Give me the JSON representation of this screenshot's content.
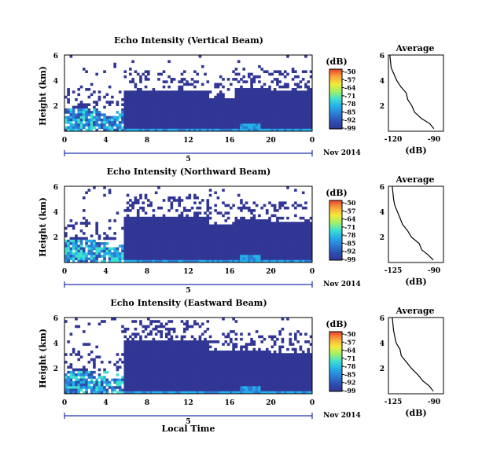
{
  "figure": {
    "x_axis_label": "Local Time",
    "date_label": "Nov 2014",
    "colorbar_unit": "(dB)",
    "colorbar_ticks": [
      "-50",
      "-57",
      "-64",
      "-71",
      "-78",
      "-85",
      "-92",
      "-99"
    ],
    "colormap": [
      "#313695",
      "#2b4fb0",
      "#2c7bd6",
      "#22b0e8",
      "#3fe0d0",
      "#9df06a",
      "#f5e93a",
      "#f9a33a",
      "#e8412b"
    ],
    "panel_border_color": "#000000",
    "day_bar_color": "#2233aa"
  },
  "chart_data": [
    {
      "type": "heatmap",
      "title": "Echo Intensity (Vertical Beam)",
      "xlabel": "",
      "ylabel": "Height (km)",
      "x_tick_labels": [
        "0",
        "4",
        "8",
        "12",
        "16",
        "20",
        "0"
      ],
      "x_range_hours": [
        0,
        24
      ],
      "y_tick_labels": [
        "6",
        "4",
        "2"
      ],
      "y_range_km": [
        0,
        6
      ],
      "day_label": "5",
      "colorbar_range_db": [
        -99,
        -50
      ],
      "profile": {
        "title": "Average",
        "xlabel": "(dB)",
        "x_tick_labels": [
          "-120",
          "-90"
        ],
        "x_range_db": [
          -125,
          -85
        ],
        "y_tick_labels": [
          "6",
          "4",
          "2"
        ],
        "y_km": [
          0.2,
          0.6,
          1.0,
          1.5,
          2.0,
          2.5,
          3.0,
          3.5,
          4.0,
          4.5,
          5.0,
          6.0
        ],
        "db": [
          -92,
          -95,
          -101,
          -106,
          -108,
          -111,
          -112,
          -116,
          -119,
          -121,
          -123,
          -124
        ]
      }
    },
    {
      "type": "heatmap",
      "title": "Echo Intensity (Northward Beam)",
      "xlabel": "",
      "ylabel": "Height (km)",
      "x_tick_labels": [
        "0",
        "4",
        "8",
        "12",
        "16",
        "20",
        "0"
      ],
      "x_range_hours": [
        0,
        24
      ],
      "y_tick_labels": [
        "6",
        "4",
        "2"
      ],
      "y_range_km": [
        0,
        6
      ],
      "day_label": "5",
      "colorbar_range_db": [
        -99,
        -50
      ],
      "profile": {
        "title": "Average",
        "xlabel": "(dB)",
        "x_tick_labels": [
          "-125",
          "-90"
        ],
        "x_range_db": [
          -128,
          -85
        ],
        "y_tick_labels": [
          "6",
          "4",
          "2"
        ],
        "y_km": [
          0.2,
          0.6,
          1.0,
          1.5,
          2.0,
          2.5,
          3.0,
          3.5,
          4.0,
          4.5,
          5.0,
          6.0
        ],
        "db": [
          -93,
          -97,
          -102,
          -104,
          -110,
          -113,
          -117,
          -119,
          -121,
          -123,
          -124,
          -125
        ]
      }
    },
    {
      "type": "heatmap",
      "title": "Echo Intensity (Eastward Beam)",
      "xlabel": "Local Time",
      "ylabel": "Height (km)",
      "x_tick_labels": [
        "0",
        "4",
        "8",
        "12",
        "16",
        "20",
        "0"
      ],
      "x_range_hours": [
        0,
        24
      ],
      "y_tick_labels": [
        "6",
        "4",
        "2"
      ],
      "y_range_km": [
        0,
        6
      ],
      "day_label": "5",
      "colorbar_range_db": [
        -99,
        -50
      ],
      "profile": {
        "title": "Average",
        "xlabel": "(dB)",
        "x_tick_labels": [
          "-125",
          "-90"
        ],
        "x_range_db": [
          -128,
          -85
        ],
        "y_tick_labels": [
          "6",
          "4",
          "2"
        ],
        "y_km": [
          0.2,
          0.6,
          1.0,
          1.5,
          2.0,
          2.5,
          3.0,
          3.5,
          4.0,
          4.5,
          5.0,
          6.0
        ],
        "db": [
          -93,
          -96,
          -101,
          -105,
          -110,
          -114,
          -118,
          -119,
          -122,
          -123,
          -124,
          -125
        ]
      }
    }
  ]
}
